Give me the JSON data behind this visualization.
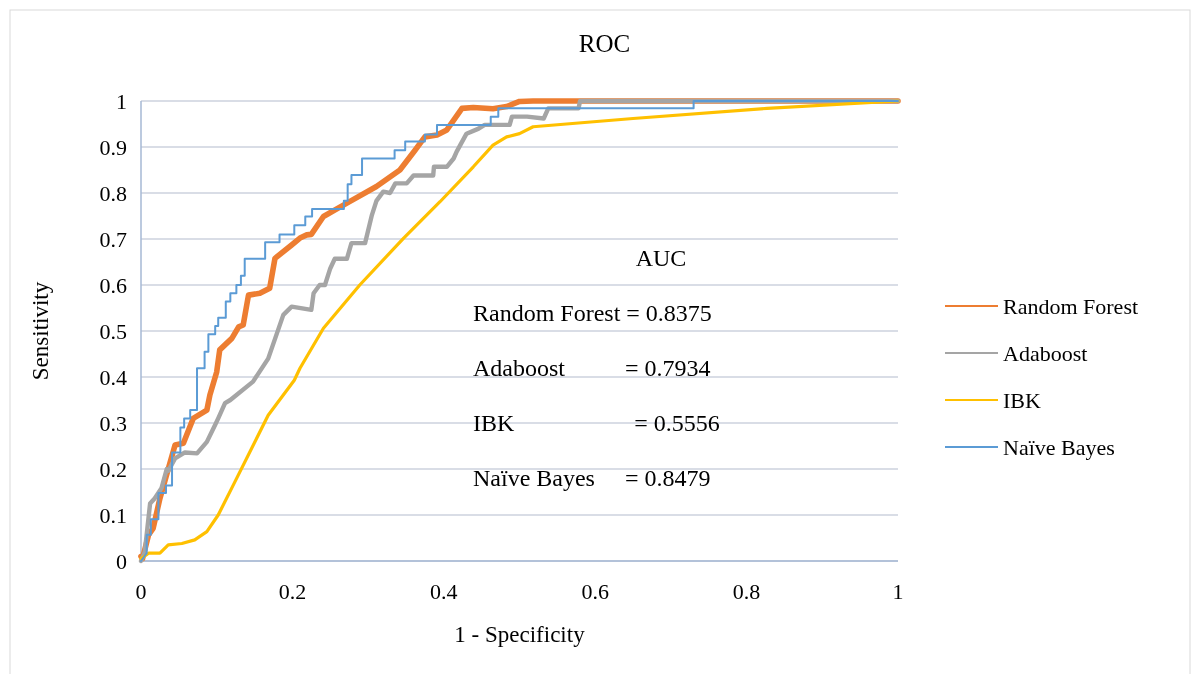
{
  "chart_data": {
    "type": "line",
    "title": "ROC",
    "xlabel": "1 - Specificity",
    "ylabel": "Sensitivity",
    "xlim": [
      0,
      1
    ],
    "ylim": [
      0,
      1
    ],
    "xticks": [
      0,
      0.2,
      0.4,
      0.6,
      0.8,
      1
    ],
    "yticks": [
      0,
      0.1,
      0.2,
      0.3,
      0.4,
      0.5,
      0.6,
      0.7,
      0.8,
      0.9,
      1
    ],
    "grid": "y",
    "legend": "right",
    "line_style": "solid",
    "annotations": [
      "AUC",
      "Random Forest = 0.8375",
      "Adaboost          = 0.7934",
      "IBK                    = 0.5556",
      "Naïve Bayes     = 0.8479"
    ],
    "series": [
      {
        "name": "Random Forest",
        "color": "#ed7d31",
        "x": [
          0,
          0.002,
          0.01,
          0.016,
          0.025,
          0.036,
          0.045,
          0.056,
          0.069,
          0.087,
          0.091,
          0.1,
          0.104,
          0.12,
          0.129,
          0.135,
          0.142,
          0.157,
          0.17,
          0.177,
          0.199,
          0.21,
          0.219,
          0.225,
          0.241,
          0.272,
          0.311,
          0.342,
          0.362,
          0.375,
          0.391,
          0.404,
          0.424,
          0.439,
          0.465,
          0.483,
          0.5,
          0.518,
          1
        ],
        "values": [
          0.01,
          0.005,
          0.057,
          0.071,
          0.136,
          0.2,
          0.252,
          0.256,
          0.31,
          0.328,
          0.361,
          0.411,
          0.459,
          0.484,
          0.509,
          0.513,
          0.578,
          0.582,
          0.593,
          0.658,
          0.687,
          0.702,
          0.709,
          0.71,
          0.749,
          0.778,
          0.814,
          0.85,
          0.893,
          0.922,
          0.926,
          0.937,
          0.984,
          0.986,
          0.983,
          0.988,
          0.999,
          1,
          1
        ]
      },
      {
        "name": "Adaboost",
        "color": "#a5a5a5",
        "x": [
          0,
          0.005,
          0.012,
          0.018,
          0.027,
          0.034,
          0.036,
          0.045,
          0.058,
          0.074,
          0.087,
          0.098,
          0.102,
          0.111,
          0.118,
          0.148,
          0.168,
          0.188,
          0.199,
          0.225,
          0.228,
          0.236,
          0.243,
          0.25,
          0.256,
          0.272,
          0.278,
          0.296,
          0.305,
          0.311,
          0.32,
          0.329,
          0.336,
          0.351,
          0.36,
          0.386,
          0.387,
          0.404,
          0.413,
          0.417,
          0.43,
          0.446,
          0.454,
          0.487,
          0.49,
          0.51,
          0.532,
          0.538,
          0.578,
          0.58,
          1
        ],
        "values": [
          0,
          0.02,
          0.125,
          0.136,
          0.158,
          0.2,
          0.196,
          0.223,
          0.236,
          0.234,
          0.259,
          0.296,
          0.31,
          0.343,
          0.35,
          0.39,
          0.44,
          0.535,
          0.553,
          0.546,
          0.582,
          0.6,
          0.6,
          0.636,
          0.657,
          0.657,
          0.691,
          0.691,
          0.752,
          0.783,
          0.803,
          0.8,
          0.821,
          0.821,
          0.838,
          0.838,
          0.857,
          0.857,
          0.875,
          0.89,
          0.929,
          0.94,
          0.948,
          0.948,
          0.966,
          0.966,
          0.962,
          0.984,
          0.984,
          1,
          1
        ]
      },
      {
        "name": "IBK",
        "color": "#ffc000",
        "x": [
          0,
          0.01,
          0.025,
          0.036,
          0.054,
          0.071,
          0.087,
          0.102,
          0.124,
          0.168,
          0.2025,
          0.21,
          0.241,
          0.289,
          0.347,
          0.395,
          0.439,
          0.465,
          0.483,
          0.5,
          0.518,
          0.65,
          0.827,
          1
        ],
        "values": [
          0.005,
          0.017,
          0.017,
          0.035,
          0.038,
          0.046,
          0.064,
          0.1,
          0.172,
          0.317,
          0.393,
          0.419,
          0.506,
          0.6,
          0.702,
          0.781,
          0.857,
          0.904,
          0.922,
          0.929,
          0.944,
          0.962,
          0.984,
          1
        ]
      },
      {
        "name": "Naïve Bayes",
        "color": "#5b9bd5",
        "x": [
          0,
          0.0075,
          0.0075,
          0.013,
          0.013,
          0.023,
          0.023,
          0.033,
          0.033,
          0.041,
          0.041,
          0.052,
          0.052,
          0.057,
          0.057,
          0.065,
          0.065,
          0.074,
          0.074,
          0.084,
          0.084,
          0.089,
          0.089,
          0.098,
          0.098,
          0.102,
          0.102,
          0.112,
          0.112,
          0.118,
          0.118,
          0.126,
          0.126,
          0.132,
          0.132,
          0.137,
          0.137,
          0.164,
          0.164,
          0.183,
          0.183,
          0.2025,
          0.2025,
          0.217,
          0.217,
          0.226,
          0.226,
          0.268,
          0.268,
          0.273,
          0.273,
          0.278,
          0.278,
          0.292,
          0.292,
          0.335,
          0.335,
          0.349,
          0.349,
          0.375,
          0.375,
          0.391,
          0.391,
          0.462,
          0.462,
          0.472,
          0.472,
          0.73,
          0.73,
          1
        ],
        "values": [
          0,
          0.017,
          0.057,
          0.057,
          0.091,
          0.091,
          0.148,
          0.148,
          0.164,
          0.164,
          0.236,
          0.236,
          0.29,
          0.29,
          0.31,
          0.31,
          0.328,
          0.328,
          0.419,
          0.419,
          0.455,
          0.455,
          0.493,
          0.493,
          0.511,
          0.511,
          0.529,
          0.529,
          0.564,
          0.564,
          0.582,
          0.582,
          0.6,
          0.6,
          0.62,
          0.62,
          0.657,
          0.657,
          0.693,
          0.693,
          0.71,
          0.71,
          0.73,
          0.73,
          0.749,
          0.749,
          0.765,
          0.765,
          0.783,
          0.783,
          0.819,
          0.819,
          0.839,
          0.839,
          0.875,
          0.875,
          0.893,
          0.893,
          0.912,
          0.912,
          0.927,
          0.927,
          0.948,
          0.948,
          0.966,
          0.966,
          0.984,
          0.984,
          1,
          1
        ]
      }
    ]
  }
}
